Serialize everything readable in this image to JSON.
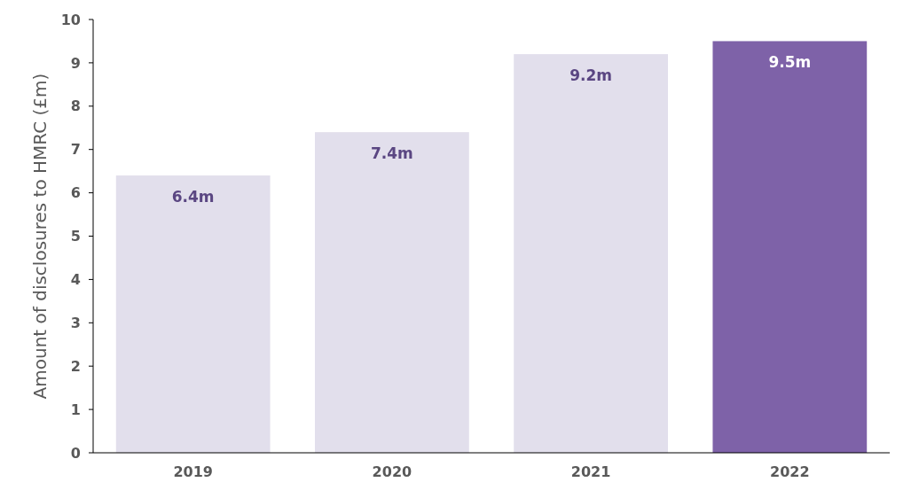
{
  "chart_data": {
    "type": "bar",
    "ylabel": "Amount of disclosures to HMRC (£m)",
    "categories": [
      "2019",
      "2020",
      "2021",
      "2022"
    ],
    "values": [
      6.4,
      7.4,
      9.2,
      9.5
    ],
    "colors": [
      "#e2dfec",
      "#e2dfec",
      "#e2dfec",
      "#7e62a8"
    ],
    "value_labels": [
      "6.4m",
      "7.4m",
      "9.2m",
      "9.5m"
    ],
    "ylim": [
      0,
      10
    ],
    "yticks": [
      0,
      1,
      2,
      3,
      4,
      5,
      6,
      7,
      8,
      9,
      10
    ],
    "grid": false
  }
}
